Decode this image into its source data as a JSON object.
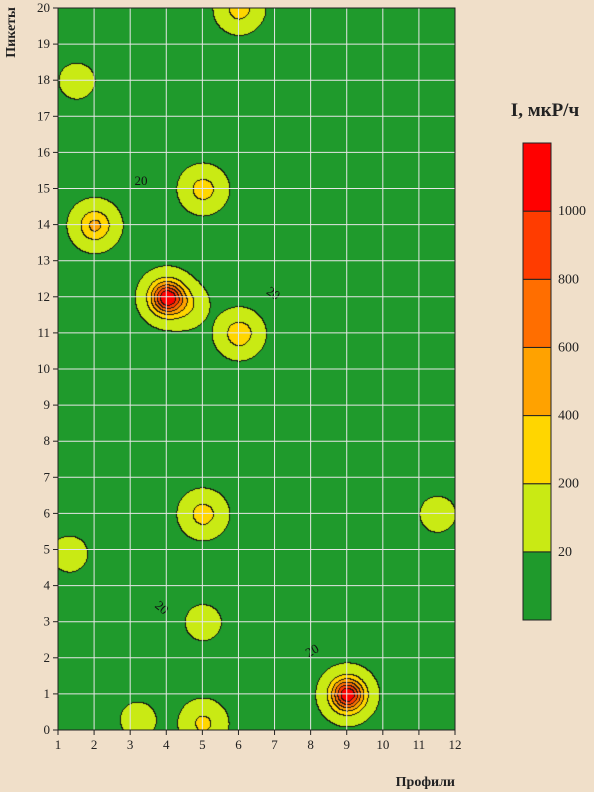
{
  "chart_data": {
    "type": "heatmap",
    "subtype": "contour map",
    "xlabel": "Профили",
    "ylabel": "Пикеты",
    "xlim": [
      1,
      12
    ],
    "ylim": [
      0,
      20
    ],
    "x_ticks": [
      "1",
      "2",
      "3",
      "4",
      "5",
      "6",
      "7",
      "8",
      "9",
      "10",
      "11",
      "12"
    ],
    "y_ticks": [
      "0",
      "1",
      "2",
      "3",
      "4",
      "5",
      "6",
      "7",
      "8",
      "9",
      "10",
      "11",
      "12",
      "13",
      "14",
      "15",
      "16",
      "17",
      "18",
      "19",
      "20"
    ],
    "grid": true,
    "legend": {
      "title": "I, мкР/ч",
      "placement": "right",
      "levels": [
        "20",
        "200",
        "400",
        "600",
        "800",
        "1000"
      ],
      "colors": [
        "#1f9a2c",
        "#c9ea14",
        "#ffd600",
        "#ffa200",
        "#ff6e00",
        "#ff3c00",
        "#ff0000"
      ]
    },
    "contour_labels": [
      {
        "text": "20",
        "x": 3.3,
        "y": 15.1,
        "angle": 0
      },
      {
        "text": "20",
        "x": 6.9,
        "y": 12.0,
        "angle": 35
      },
      {
        "text": "20",
        "x": 3.8,
        "y": 3.3,
        "angle": 40
      },
      {
        "text": "20",
        "x": 8.1,
        "y": 2.1,
        "angle": -30
      }
    ],
    "anomalies": [
      {
        "x": 4,
        "y": 12,
        "peak": 1200
      },
      {
        "x": 9,
        "y": 1,
        "peak": 1200
      },
      {
        "x": 2,
        "y": 14,
        "peak": 450
      },
      {
        "x": 6,
        "y": 11,
        "peak": 350
      },
      {
        "x": 5,
        "y": 15,
        "peak": 300
      },
      {
        "x": 5,
        "y": 6,
        "peak": 300
      },
      {
        "x": 6,
        "y": 20,
        "peak": 300
      },
      {
        "x": 5,
        "y": 0.2,
        "peak": 250
      },
      {
        "x": 4.5,
        "y": 11.8,
        "peak": 200
      },
      {
        "x": 1.5,
        "y": 18,
        "peak": 60
      },
      {
        "x": 1.3,
        "y": 4.9,
        "peak": 60
      },
      {
        "x": 11.5,
        "y": 6,
        "peak": 60
      },
      {
        "x": 5,
        "y": 3,
        "peak": 60
      },
      {
        "x": 3.2,
        "y": 0.3,
        "peak": 60
      }
    ]
  }
}
